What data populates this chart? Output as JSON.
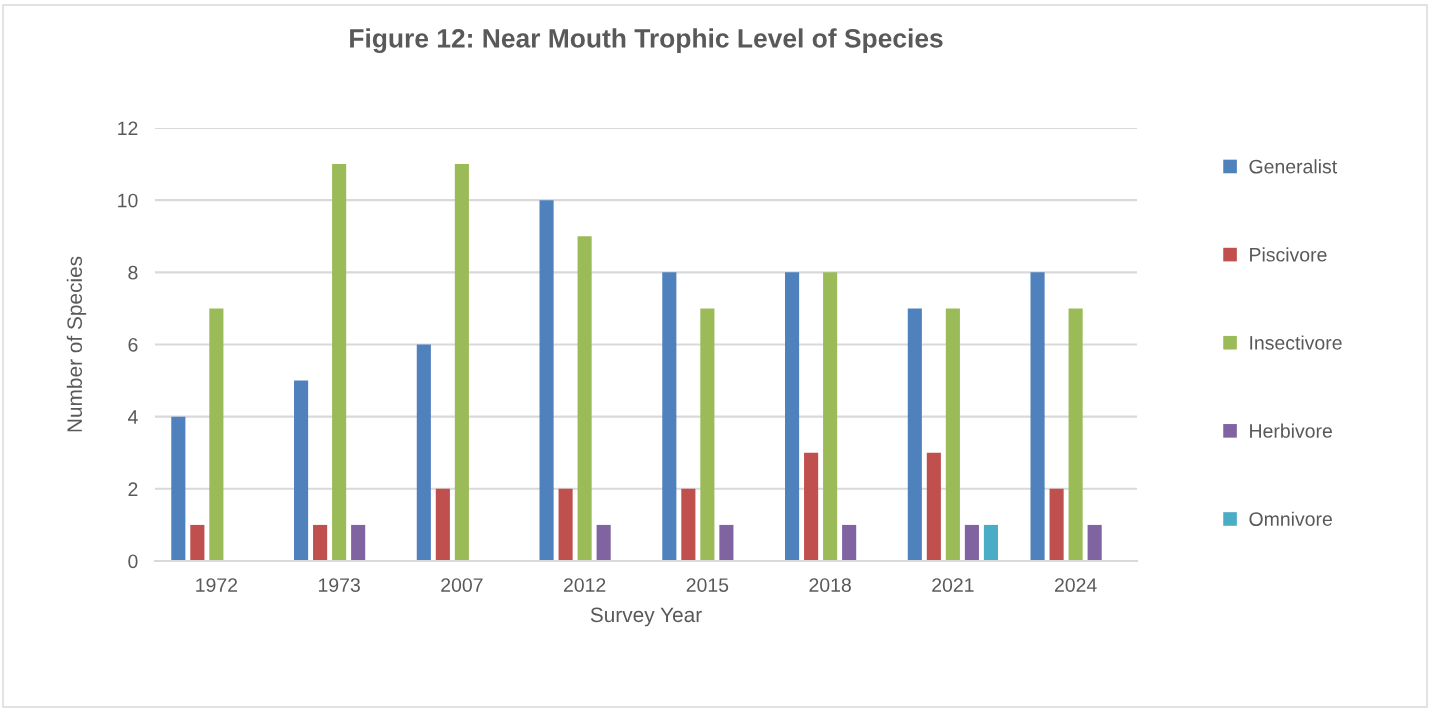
{
  "chart_data": {
    "type": "bar",
    "title": "Figure 12: Near Mouth Trophic Level of Species",
    "xlabel": "Survey Year",
    "ylabel": "Number of Species",
    "categories": [
      "1972",
      "1973",
      "2007",
      "2012",
      "2015",
      "2018",
      "2021",
      "2024"
    ],
    "series": [
      {
        "name": "Generalist",
        "color": "#4f81bd",
        "values": [
          4,
          5,
          6,
          10,
          8,
          8,
          7,
          8
        ]
      },
      {
        "name": "Piscivore",
        "color": "#c0504d",
        "values": [
          1,
          1,
          2,
          2,
          2,
          3,
          3,
          2
        ]
      },
      {
        "name": "Insectivore",
        "color": "#9bbb59",
        "values": [
          7,
          11,
          11,
          9,
          7,
          8,
          7,
          7
        ]
      },
      {
        "name": "Herbivore",
        "color": "#8064a2",
        "values": [
          0,
          1,
          0,
          1,
          1,
          1,
          1,
          1
        ]
      },
      {
        "name": "Omnivore",
        "color": "#4bacc6",
        "values": [
          0,
          0,
          0,
          0,
          0,
          0,
          1,
          0
        ]
      }
    ],
    "ylim": [
      0,
      12
    ],
    "yticks": [
      0,
      2,
      4,
      6,
      8,
      10,
      12
    ],
    "grid": "y",
    "legend": "right"
  }
}
